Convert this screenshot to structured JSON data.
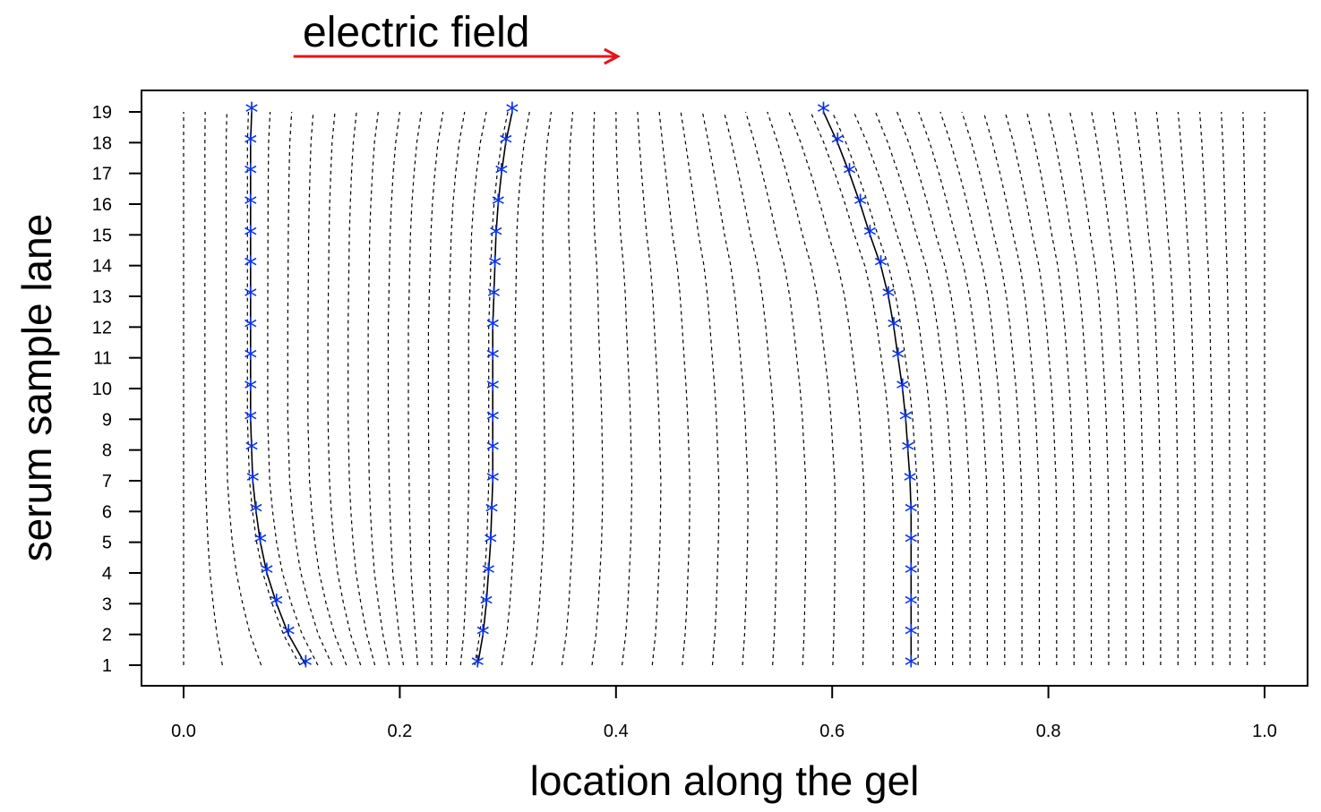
{
  "chart_data": {
    "type": "line",
    "title": "",
    "xlabel": "location along the gel",
    "ylabel": "serum sample lane",
    "xlim": [
      0.0,
      1.0
    ],
    "ylim": [
      1,
      19
    ],
    "xticks": [
      "0.0",
      "0.2",
      "0.4",
      "0.6",
      "0.8",
      "1.0"
    ],
    "yticks": [
      "1",
      "2",
      "3",
      "4",
      "5",
      "6",
      "7",
      "8",
      "9",
      "10",
      "11",
      "12",
      "13",
      "14",
      "15",
      "16",
      "17",
      "18",
      "19"
    ],
    "grid": false,
    "annotation": {
      "text": "electric field",
      "arrow_color": "#e8131b",
      "arrow_from_x": 0.1,
      "arrow_to_x": 0.4
    },
    "marker_color": "#0a32e6",
    "lanes": [
      1,
      2,
      3,
      4,
      5,
      6,
      7,
      8,
      9,
      10,
      11,
      12,
      13,
      14,
      15,
      16,
      17,
      18,
      19
    ],
    "series": [
      {
        "x": [
          0.113,
          0.097,
          0.086,
          0.077,
          0.071,
          0.067,
          0.064,
          0.063,
          0.062,
          0.062,
          0.062,
          0.062,
          0.062,
          0.062,
          0.062,
          0.062,
          0.062,
          0.062,
          0.063
        ]
      },
      {
        "x": [
          0.272,
          0.277,
          0.28,
          0.282,
          0.284,
          0.285,
          0.286,
          0.286,
          0.286,
          0.286,
          0.286,
          0.286,
          0.287,
          0.288,
          0.289,
          0.291,
          0.294,
          0.298,
          0.304
        ]
      },
      {
        "x": [
          0.673,
          0.673,
          0.673,
          0.673,
          0.673,
          0.673,
          0.672,
          0.67,
          0.668,
          0.665,
          0.661,
          0.657,
          0.652,
          0.645,
          0.635,
          0.626,
          0.616,
          0.605,
          0.592
        ]
      }
    ],
    "warp_lines": {
      "style": "dashed",
      "count": 51,
      "description_values": "grid of evenly spaced locations in [0,1] mapped through lane-specific warping"
    }
  }
}
